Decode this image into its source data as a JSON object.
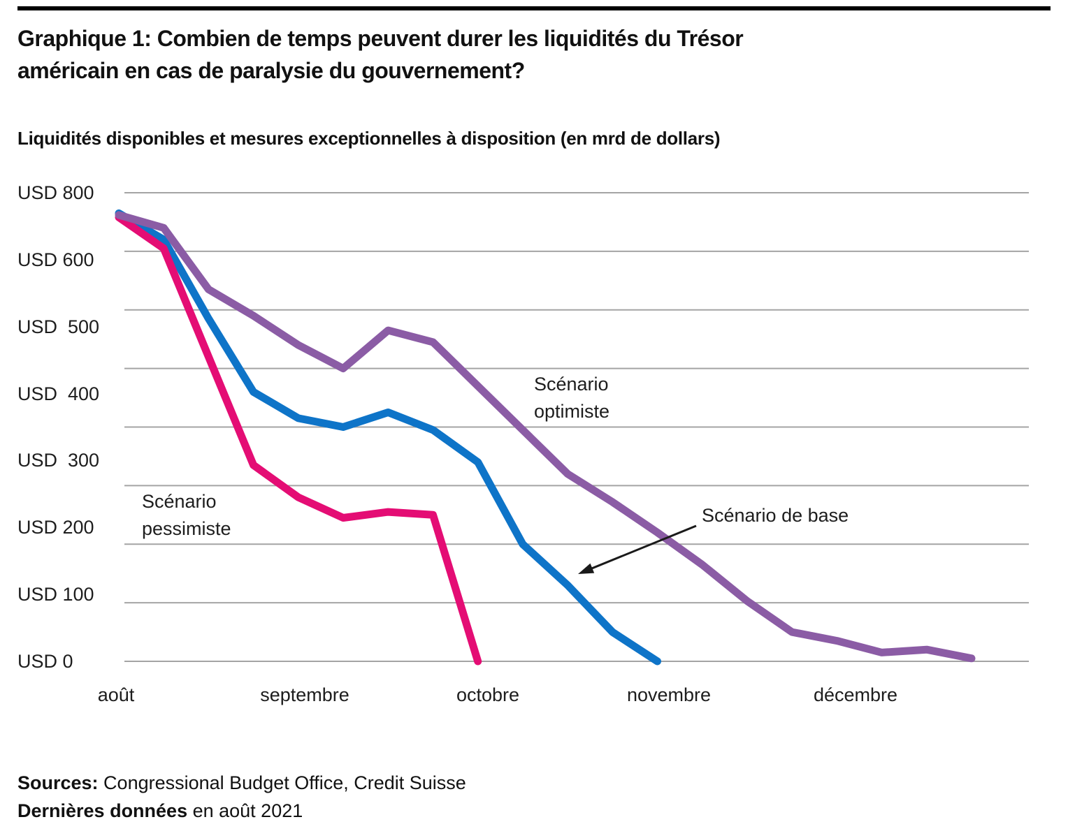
{
  "header": {
    "title_line1": "Graphique 1: Combien de temps peuvent durer les liquidités du Trésor",
    "title_line2": "américain en cas de paralysie du gouvernement?",
    "subtitle": "Liquidités disponibles et mesures exceptionnelles à disposition (en mrd de dollars)"
  },
  "chart_data": {
    "type": "line",
    "title": "Graphique 1: Combien de temps peuvent durer les liquidités du Trésor américain en cas de paralysie du gouvernement?",
    "subtitle": "Liquidités disponibles et mesures exceptionnelles à disposition (en mrd de dollars)",
    "x_unit": "semaine (0 = début août 2021)",
    "x_tick_labels": [
      "août",
      "septembre",
      "octobre",
      "novembre",
      "décembre"
    ],
    "y_tick_labels": [
      "USD 800",
      "USD 600",
      "USD  500",
      "USD  400",
      "USD  300",
      "USD 200",
      "USD 100",
      "USD 0"
    ],
    "ylim": [
      0,
      800
    ],
    "gridline_values": [
      0,
      100,
      200,
      300,
      400,
      500,
      600,
      700,
      800
    ],
    "grid": true,
    "legend": "inline-annotations",
    "colors": {
      "blue": "#0e74c8",
      "pink": "#e40d74",
      "purple": "#8b5ca5",
      "grid": "#a4a4a4",
      "text": "#1a1a1a"
    },
    "series": [
      {
        "name": "Scénario de base",
        "color": "#0e74c8",
        "x_weeks": [
          0,
          1,
          2,
          3,
          4,
          5,
          6,
          7,
          8,
          9,
          10,
          11,
          12
        ],
        "values": [
          765,
          720,
          585,
          460,
          415,
          400,
          425,
          395,
          340,
          200,
          130,
          50,
          0
        ]
      },
      {
        "name": "Scénario pessimiste",
        "color": "#e40d74",
        "x_weeks": [
          0,
          1,
          2,
          3,
          4,
          5,
          6,
          7,
          8
        ],
        "values": [
          758,
          705,
          520,
          335,
          280,
          245,
          255,
          250,
          0
        ]
      },
      {
        "name": "Scénario optimiste",
        "color": "#8b5ca5",
        "x_weeks": [
          0,
          1,
          2,
          3,
          4,
          5,
          6,
          7,
          8,
          9,
          10,
          11,
          12,
          13,
          14,
          15,
          16,
          17,
          18,
          19
        ],
        "values": [
          762,
          740,
          635,
          590,
          540,
          500,
          565,
          545,
          470,
          395,
          320,
          272,
          220,
          165,
          103,
          50,
          35,
          15,
          20,
          5
        ]
      }
    ],
    "annotations": {
      "pessimiste": {
        "line1": "Scénario",
        "line2": "pessimiste"
      },
      "optimiste": {
        "line1": "Scénario",
        "line2": "optimiste"
      },
      "base": {
        "label": "Scénario de base"
      }
    }
  },
  "footer": {
    "sources_label": "Sources:",
    "sources_text": " Congressional Budget Office, Credit Suisse",
    "lastdata_label": "Dernières données",
    "lastdata_text": " en août 2021"
  }
}
